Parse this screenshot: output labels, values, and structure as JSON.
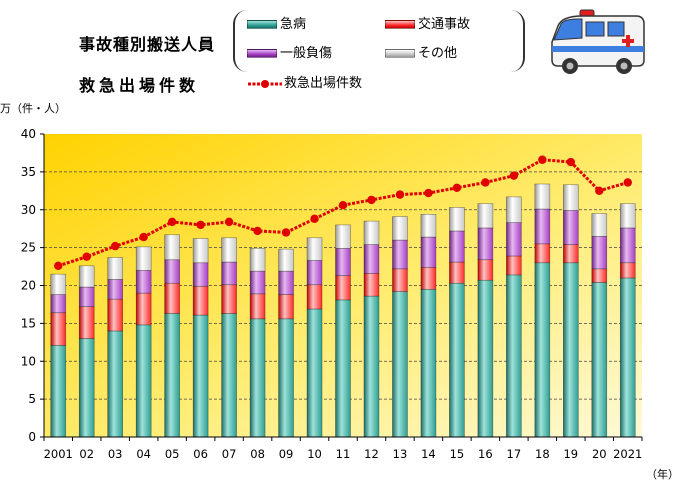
{
  "titles": {
    "line1": "事故種別搬送人員",
    "line2": "救急出場件数"
  },
  "legend": {
    "acute_illness": "急病",
    "traffic": "交通事故",
    "general_injury": "一般負傷",
    "other": "その他",
    "dispatches": "救急出場件数"
  },
  "colors": {
    "acute_illness": "#2e9e92",
    "traffic": "#ff2a2a",
    "general_injury": "#a63fc4",
    "other": "#c8c8c8",
    "dispatches_line": "#e00000",
    "plot_bg_top": "#ffd200",
    "plot_bg_bottom": "#fff9d8"
  },
  "icons": {
    "ambulance": "ambulance-icon"
  },
  "chart_data": {
    "type": "bar",
    "stacked": true,
    "ylabel": "万（件・人）",
    "xlabel": "（年）",
    "ylim": [
      0,
      40
    ],
    "yticks": [
      0,
      5,
      10,
      15,
      20,
      25,
      30,
      35,
      40
    ],
    "grid": true,
    "categories": [
      "2001",
      "02",
      "03",
      "04",
      "05",
      "06",
      "07",
      "08",
      "09",
      "10",
      "11",
      "12",
      "13",
      "14",
      "15",
      "16",
      "17",
      "18",
      "19",
      "20",
      "2021"
    ],
    "series": [
      {
        "name": "急病",
        "key": "acute_illness",
        "values": [
          12.1,
          13.0,
          14.0,
          14.8,
          16.3,
          16.1,
          16.3,
          15.6,
          15.6,
          16.9,
          18.1,
          18.6,
          19.2,
          19.5,
          20.3,
          20.7,
          21.4,
          23.0,
          23.0,
          20.4,
          21.0
        ]
      },
      {
        "name": "交通事故",
        "key": "traffic",
        "values": [
          4.3,
          4.2,
          4.2,
          4.2,
          4.0,
          3.8,
          3.8,
          3.3,
          3.2,
          3.2,
          3.2,
          3.0,
          3.0,
          2.9,
          2.8,
          2.7,
          2.5,
          2.5,
          2.4,
          1.8,
          2.0
        ]
      },
      {
        "name": "一般負傷",
        "key": "general_injury",
        "values": [
          2.4,
          2.6,
          2.6,
          3.0,
          3.1,
          3.1,
          3.0,
          3.0,
          3.1,
          3.2,
          3.6,
          3.8,
          3.8,
          4.0,
          4.1,
          4.2,
          4.4,
          4.6,
          4.5,
          4.3,
          4.6
        ]
      },
      {
        "name": "その他",
        "key": "other",
        "values": [
          2.7,
          2.8,
          2.9,
          3.1,
          3.3,
          3.2,
          3.2,
          3.0,
          2.9,
          3.0,
          3.1,
          3.1,
          3.1,
          3.0,
          3.1,
          3.2,
          3.4,
          3.3,
          3.4,
          3.0,
          3.2
        ]
      }
    ],
    "line": {
      "name": "救急出場件数",
      "values": [
        22.6,
        23.8,
        25.2,
        26.4,
        28.4,
        28.0,
        28.4,
        27.2,
        27.0,
        28.8,
        30.6,
        31.3,
        32.0,
        32.2,
        32.9,
        33.6,
        34.5,
        36.6,
        36.3,
        32.5,
        33.6
      ]
    }
  }
}
